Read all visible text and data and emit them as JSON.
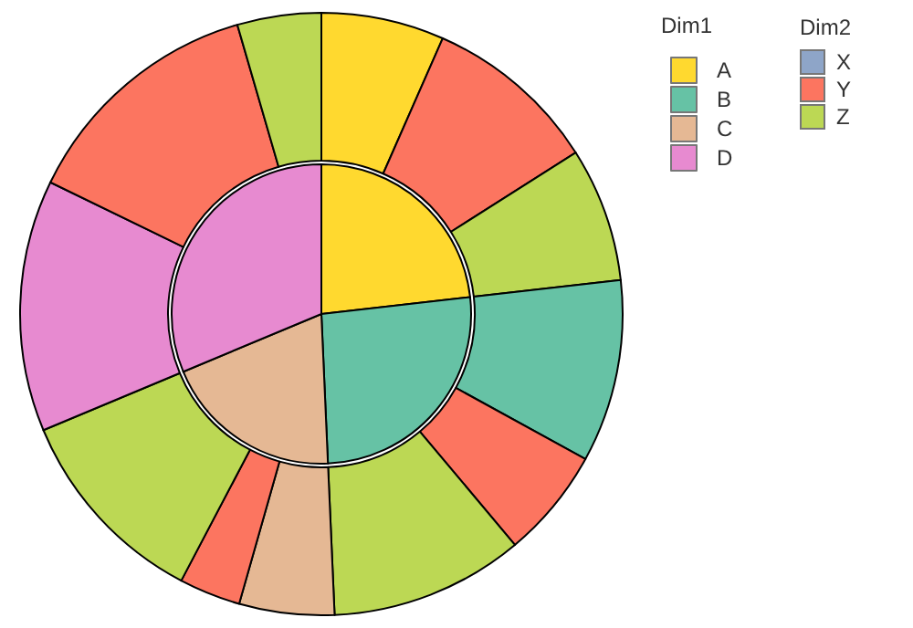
{
  "chart_data": [
    {
      "type": "pie",
      "legend_title": "Dim1",
      "legend": "top right",
      "categories": [
        "A",
        "B",
        "C",
        "D"
      ],
      "values": [
        23.2,
        26.1,
        19.4,
        31.3
      ],
      "colors": [
        "#ffd92f",
        "#66c2a5",
        "#e5b894",
        "#e78ad0"
      ]
    },
    {
      "type": "donut",
      "categories": [
        null,
        null,
        null,
        null,
        null,
        null,
        null,
        null,
        null,
        null,
        null,
        null
      ],
      "values": [
        6.6,
        9.4,
        7.2,
        9.8,
        5.9,
        10.4,
        5.1,
        3.3,
        11.0,
        13.5,
        13.3,
        4.5
      ],
      "colors": [
        "#ffd92f",
        "#fc7560",
        "#bcd854",
        "#66c2a5",
        "#fc7560",
        "#bcd854",
        "#e5b894",
        "#fc7560",
        "#bcd854",
        "#e78ad0",
        "#fc7560",
        "#bcd854"
      ]
    },
    {
      "type": "other",
      "legend_title": "Dim2",
      "categories": [
        "X",
        "Y",
        "Z"
      ],
      "colors": [
        "#8ea5c8",
        "#fc7560",
        "#bcd854"
      ]
    }
  ]
}
